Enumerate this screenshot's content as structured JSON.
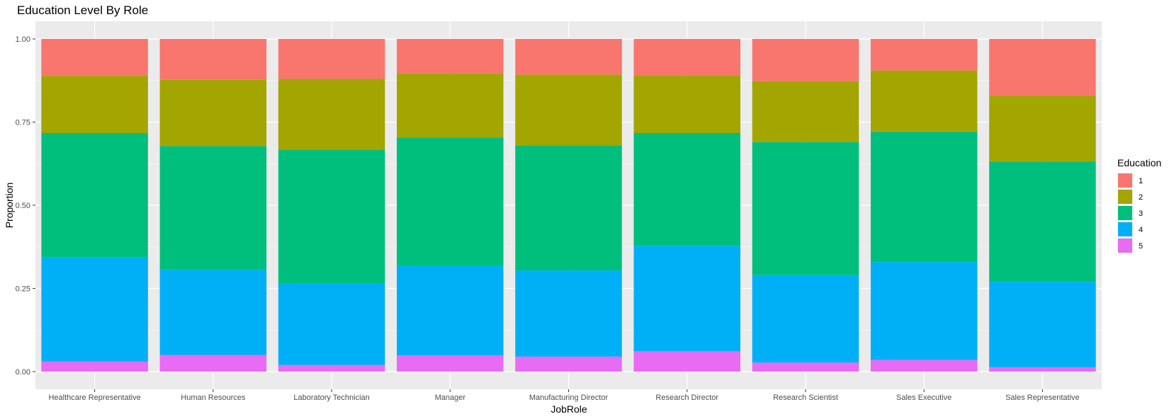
{
  "chart_data": {
    "type": "bar",
    "stacked": true,
    "title": "Education Level By Role",
    "xlabel": "JobRole",
    "ylabel": "Proportion",
    "ylim": [
      0,
      1
    ],
    "yticks": [
      "0.00",
      "0.25",
      "0.50",
      "0.75",
      "1.00"
    ],
    "ytick_values": [
      0,
      0.25,
      0.5,
      0.75,
      1
    ],
    "grid": true,
    "legend": {
      "title": "Education",
      "placement": "right"
    },
    "categories": [
      "Healthcare Representative",
      "Human Resources",
      "Laboratory Technician",
      "Manager",
      "Manufacturing Director",
      "Research Director",
      "Research Scientist",
      "Sales Executive",
      "Sales Representative"
    ],
    "series": [
      {
        "name": "1",
        "color": "#F8766D",
        "values": [
          0.111,
          0.123,
          0.12,
          0.104,
          0.107,
          0.109,
          0.127,
          0.095,
          0.171
        ]
      },
      {
        "name": "2",
        "color": "#A3A500",
        "values": [
          0.172,
          0.199,
          0.214,
          0.192,
          0.213,
          0.174,
          0.183,
          0.184,
          0.198
        ]
      },
      {
        "name": "3",
        "color": "#00BF7D",
        "values": [
          0.374,
          0.372,
          0.401,
          0.386,
          0.376,
          0.339,
          0.4,
          0.392,
          0.361
        ]
      },
      {
        "name": "4",
        "color": "#00B0F6",
        "values": [
          0.313,
          0.256,
          0.245,
          0.269,
          0.259,
          0.317,
          0.263,
          0.294,
          0.257
        ]
      },
      {
        "name": "5",
        "color": "#E76BF3",
        "values": [
          0.03,
          0.05,
          0.02,
          0.049,
          0.045,
          0.061,
          0.027,
          0.035,
          0.013
        ]
      }
    ]
  }
}
